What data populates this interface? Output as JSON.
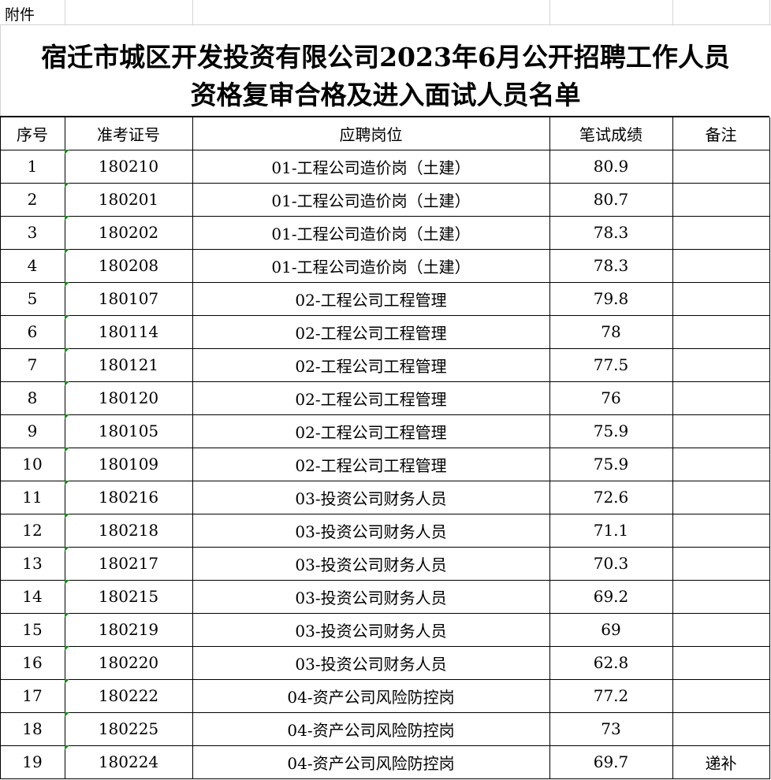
{
  "label": "附件",
  "title": [
    "宿迁市城区开发投资有限公司2023年6月公开招聘工作人员",
    "资格复审合格及进入面试人员名单"
  ],
  "table": {
    "header": [
      "序号",
      "准考证号",
      "应聘岗位",
      "笔试成绩",
      "备注"
    ],
    "rows": [
      [
        "1",
        "180210",
        "01-工程公司造价岗（土建）",
        "80.9"
      ],
      [
        "2",
        "180201",
        "01-工程公司造价岗（土建）",
        "80.7"
      ],
      [
        "3",
        "180202",
        "01-工程公司造价岗（土建）",
        "78.3"
      ],
      [
        "4",
        "180208",
        "01-工程公司造价岗（土建）",
        "78.3"
      ],
      [
        "5",
        "180107",
        "02-工程公司工程管理",
        "79.8"
      ],
      [
        "6",
        "180114",
        "02-工程公司工程管理",
        "78"
      ],
      [
        "7",
        "180121",
        "02-工程公司工程管理",
        "77.5"
      ],
      [
        "8",
        "180120",
        "02-工程公司工程管理",
        "76"
      ],
      [
        "9",
        "180105",
        "02-工程公司工程管理",
        "75.9"
      ],
      [
        "10",
        "180109",
        "02-工程公司工程管理",
        "75.9"
      ],
      [
        "11",
        "180216",
        "03-投资公司财务人员",
        "72.6"
      ],
      [
        "12",
        "180218",
        "03-投资公司财务人员",
        "71.1"
      ],
      [
        "13",
        "180217",
        "03-投资公司财务人员",
        "70.3"
      ],
      [
        "14",
        "180215",
        "03-投资公司财务人员",
        "69.2"
      ],
      [
        "15",
        "180219",
        "03-投资公司财务人员",
        "69"
      ],
      [
        "16",
        "180220",
        "03-投资公司财务人员",
        "62.8"
      ],
      [
        "17",
        "180222",
        "04-资产公司风险防控岗",
        "77.2"
      ],
      [
        "18",
        "180225",
        "04-资产公司风险防控岗",
        "73"
      ],
      [
        "19",
        "180224",
        "04-资产公司风险防控岗",
        "69.7",
        "递补"
      ]
    ]
  }
}
